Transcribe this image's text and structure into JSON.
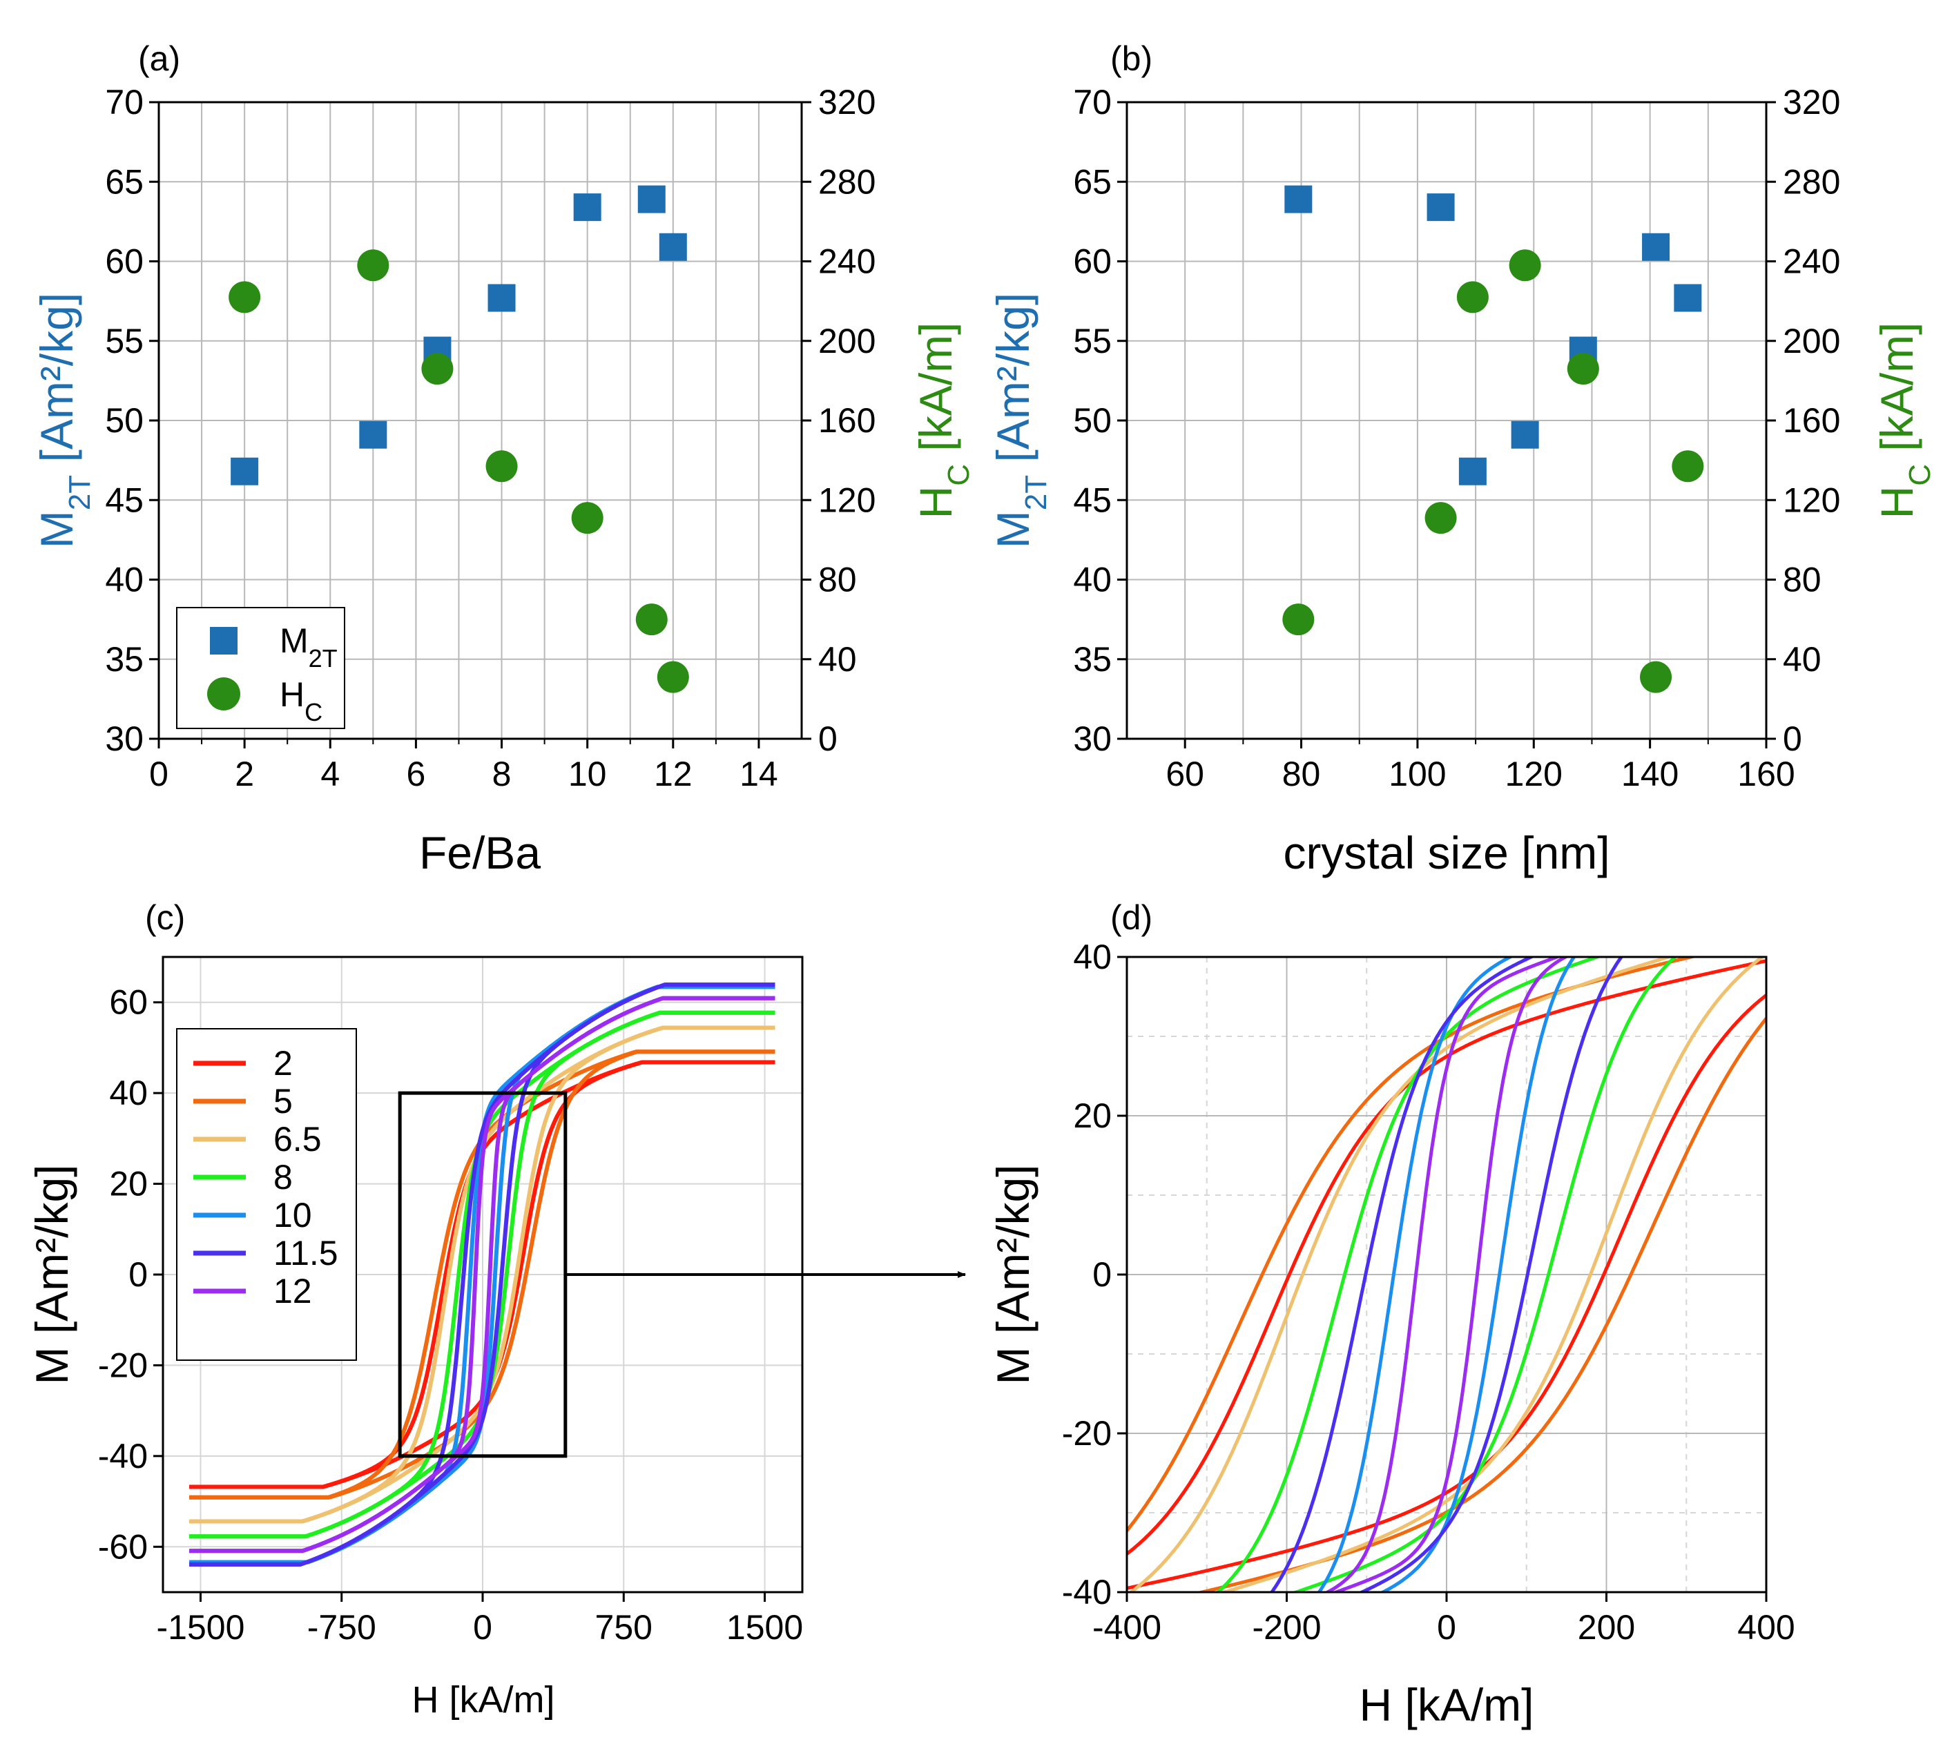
{
  "colors": {
    "m2t": "#1e6fb2",
    "hc": "#2a8c14",
    "m2t_text": "#1f6fb0",
    "hc_text": "#2d8a12",
    "grid": "#b8b8b8",
    "grid_dash": "#d6d6d6"
  },
  "chart_data": [
    {
      "panel": "(a)",
      "type": "scatter",
      "xlabel": "Fe/Ba",
      "xlim": [
        0,
        15
      ],
      "xticks": [
        0,
        2,
        4,
        6,
        8,
        10,
        12,
        14
      ],
      "ylabel_left": "M",
      "ylabel_left_sub": "2T",
      "ylabel_left_unit": " [Am²/kg]",
      "ylim_left": [
        30,
        70
      ],
      "yticks_left": [
        30,
        35,
        40,
        45,
        50,
        55,
        60,
        65,
        70
      ],
      "ylabel_right": "H",
      "ylabel_right_sub": "C",
      "ylabel_right_unit": " [kA/m]",
      "ylim_right": [
        0,
        320
      ],
      "yticks_right": [
        0,
        40,
        80,
        120,
        160,
        200,
        240,
        280,
        320
      ],
      "legend": {
        "position": "bottom-left",
        "entries": [
          {
            "label": "M",
            "sub": "2T",
            "marker": "square"
          },
          {
            "label": "H",
            "sub": "C",
            "marker": "circle"
          }
        ]
      },
      "series": [
        {
          "name": "M2T",
          "axis": "left",
          "marker": "square",
          "x": [
            2,
            5,
            6.5,
            8,
            10,
            11.5,
            12
          ],
          "y": [
            46.8,
            49.1,
            54.4,
            57.7,
            63.4,
            63.9,
            60.9
          ]
        },
        {
          "name": "HC",
          "axis": "right",
          "marker": "circle",
          "x": [
            2,
            5,
            6.5,
            8,
            10,
            11.5,
            12
          ],
          "y": [
            222,
            238,
            186,
            137,
            111,
            60,
            31
          ]
        }
      ]
    },
    {
      "panel": "(b)",
      "type": "scatter",
      "xlabel": "crystal size [nm]",
      "xlim": [
        50,
        160
      ],
      "xticks": [
        60,
        80,
        100,
        120,
        140,
        160
      ],
      "ylabel_left": "M",
      "ylabel_left_sub": "2T",
      "ylabel_left_unit": " [Am²/kg]",
      "ylim_left": [
        30,
        70
      ],
      "yticks_left": [
        30,
        35,
        40,
        45,
        50,
        55,
        60,
        65,
        70
      ],
      "ylabel_right": "H",
      "ylabel_right_sub": "C",
      "ylabel_right_unit": " [kA/m]",
      "ylim_right": [
        0,
        320
      ],
      "yticks_right": [
        0,
        40,
        80,
        120,
        160,
        200,
        240,
        280,
        320
      ],
      "series": [
        {
          "name": "M2T",
          "axis": "left",
          "marker": "square",
          "x": [
            79.5,
            104,
            109.5,
            118.5,
            128.5,
            141,
            146.5
          ],
          "y": [
            63.9,
            63.4,
            46.8,
            49.1,
            54.4,
            60.9,
            57.7
          ]
        },
        {
          "name": "HC",
          "axis": "right",
          "marker": "circle",
          "x": [
            79.5,
            104,
            109.5,
            118.5,
            128.5,
            141,
            146.5
          ],
          "y": [
            60,
            111,
            222,
            238,
            186,
            31,
            137
          ]
        }
      ]
    },
    {
      "panel": "(c)",
      "type": "line",
      "xlabel": "H [kA/m]",
      "ylabel": "M [Am²/kg]",
      "xlim": [
        -1700,
        1700
      ],
      "ylim": [
        -70,
        70
      ],
      "xticks": [
        -1500,
        -750,
        0,
        750,
        1500
      ],
      "yticks": [
        -60,
        -40,
        -20,
        0,
        20,
        40,
        60
      ],
      "zoom_box": {
        "xlim": [
          -440,
          440
        ],
        "ylim": [
          -40,
          40
        ]
      },
      "legend": {
        "position": "top-left"
      },
      "series": [
        {
          "name": "2",
          "color": "#ff1a0a",
          "Ms": 46.8,
          "Hc": 220,
          "Mr": 24
        },
        {
          "name": "5",
          "color": "#f26a0f",
          "Ms": 49.1,
          "Hc": 260,
          "Mr": 26
        },
        {
          "name": "6.5",
          "color": "#efc06e",
          "Ms": 54.4,
          "Hc": 205,
          "Mr": 25
        },
        {
          "name": "8",
          "color": "#1fee1f",
          "Ms": 57.7,
          "Hc": 140,
          "Mr": 27
        },
        {
          "name": "10",
          "color": "#1b8ff0",
          "Ms": 63.4,
          "Hc": 70,
          "Mr": 30
        },
        {
          "name": "11.5",
          "color": "#4a2ff0",
          "Ms": 63.9,
          "Hc": 110,
          "Mr": 29
        },
        {
          "name": "12",
          "color": "#9b2cf0",
          "Ms": 60.9,
          "Hc": 40,
          "Mr": 28
        }
      ]
    },
    {
      "panel": "(d)",
      "type": "line",
      "xlabel": "H [kA/m]",
      "ylabel": "M [Am²/kg]",
      "xlim": [
        -400,
        400
      ],
      "ylim": [
        -40,
        40
      ],
      "xticks": [
        -400,
        -200,
        0,
        200,
        400
      ],
      "yticks": [
        -40,
        -20,
        0,
        20,
        40
      ],
      "note": "zoom of panel (c) inside the black box"
    }
  ]
}
